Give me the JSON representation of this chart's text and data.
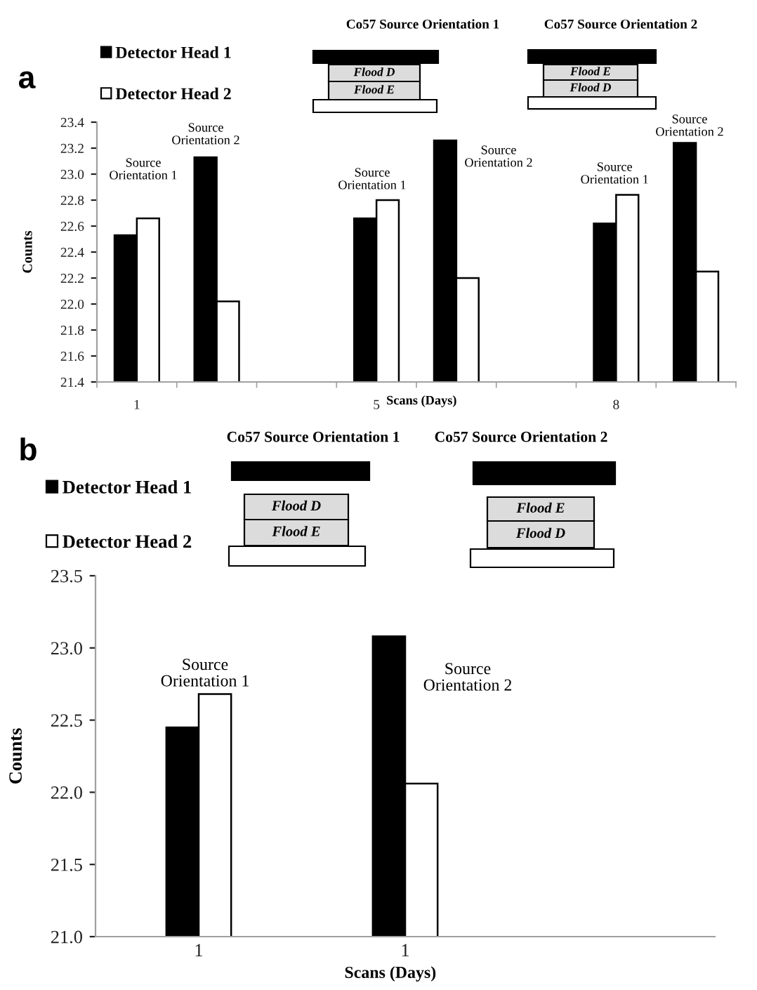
{
  "chart_data": [
    {
      "type": "bar",
      "title": "a",
      "xlabel": "Scans (Days)",
      "ylabel": "Counts",
      "categories": [
        "1",
        null,
        null,
        "5",
        null,
        null,
        "8",
        null
      ],
      "series": [
        {
          "name": "Detector Head 1",
          "color": "#000000",
          "values": [
            22.53,
            23.13,
            null,
            22.66,
            23.26,
            null,
            22.62,
            23.24
          ]
        },
        {
          "name": "Detector Head 2",
          "color": "#ffffff",
          "values": [
            22.66,
            22.02,
            null,
            22.8,
            22.2,
            null,
            22.84,
            22.25
          ]
        }
      ],
      "ylim": [
        21.4,
        23.4
      ],
      "yticks": [
        21.4,
        21.6,
        21.8,
        {
          "value": 22,
          "label": "22.0"
        },
        22.2,
        22.4,
        22.6,
        22.8,
        {
          "value": 23,
          "label": "23.0"
        },
        23.2,
        23.4
      ],
      "legend": "top left",
      "annotations": [
        "Co57 Source Orientation 1",
        "Co57 Source Orientation 2",
        "Flood D",
        "Flood E",
        "Flood E",
        "Flood D",
        "Source\nOrientation 1",
        "Source\nOrientation 2",
        "Source\nOrientation 1",
        "Source\nOrientation 2",
        "Source\nOrientation 1",
        "Source\nOrientation 2"
      ]
    },
    {
      "type": "bar",
      "title": "b",
      "xlabel": "Scans (Days)",
      "ylabel": "Counts",
      "categories": [
        "1",
        "1",
        null
      ],
      "series": [
        {
          "name": "Detector Head 1",
          "color": "#000000",
          "values": [
            22.45,
            23.08,
            null
          ]
        },
        {
          "name": "Detector Head 2",
          "color": "#ffffff",
          "values": [
            22.68,
            22.06,
            null
          ]
        }
      ],
      "ylim": [
        21.0,
        23.5
      ],
      "yticks": [
        {
          "value": 21,
          "label": "21.0"
        },
        21.5,
        {
          "value": 22,
          "label": "22.0"
        },
        22.5,
        {
          "value": 23,
          "label": "23.0"
        },
        23.5
      ],
      "legend": "top left",
      "annotations": [
        "Co57 Source Orientation 1",
        "Co57 Source Orientation 2",
        "Flood D",
        "Flood E",
        "Flood E",
        "Flood D",
        "Source\nOrientation 1",
        "Source\nOrientation 2"
      ]
    }
  ]
}
